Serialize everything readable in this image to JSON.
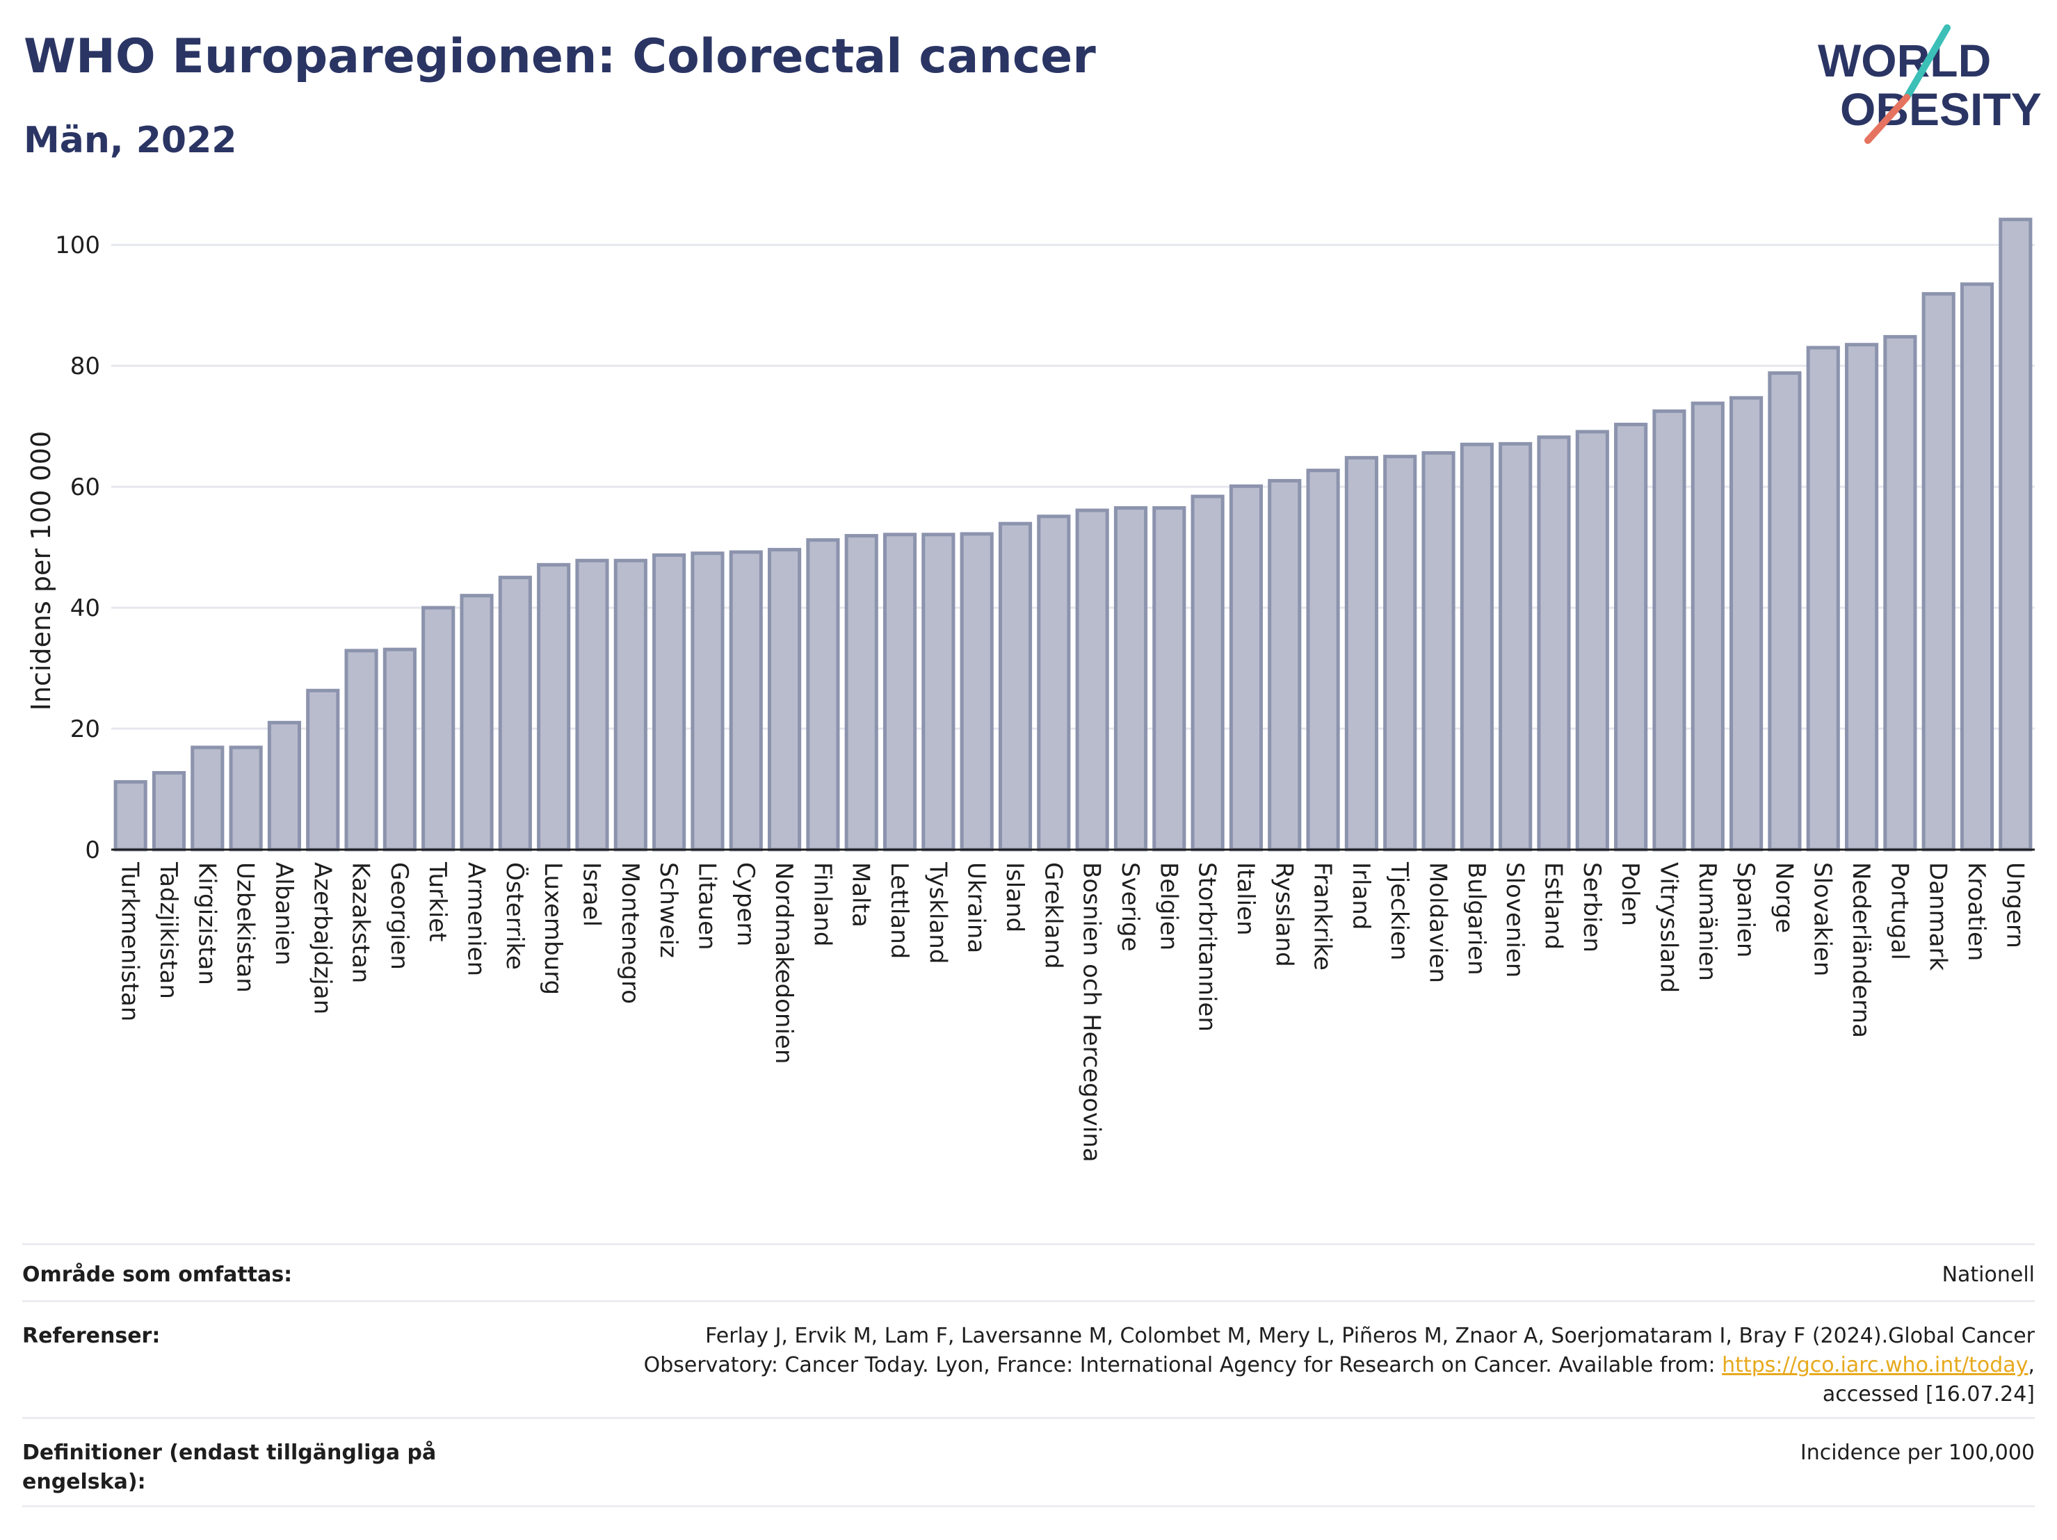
{
  "header": {
    "title": "WHO Europaregionen: Colorectal cancer",
    "subtitle": "Män, 2022"
  },
  "logo": {
    "line1": "WORLD",
    "line2": "OBESITY"
  },
  "chart_data": {
    "type": "bar",
    "title": "WHO Europaregionen: Colorectal cancer",
    "subtitle": "Män, 2022",
    "ylabel": "Incidens per 100 000",
    "xlabel": "",
    "ylim": [
      0,
      106
    ],
    "yticks": [
      0,
      20,
      40,
      60,
      80,
      100
    ],
    "grid": true,
    "bar_color": "#b8bccd",
    "bar_edge_color": "#8c93ad",
    "categories": [
      "Turkmenistan",
      "Tadzjikistan",
      "Kirgizistan",
      "Uzbekistan",
      "Albanien",
      "Azerbajdzjan",
      "Kazakstan",
      "Georgien",
      "Turkiet",
      "Armenien",
      "Österrike",
      "Luxemburg",
      "Israel",
      "Montenegro",
      "Schweiz",
      "Litauen",
      "Cypern",
      "Nordmakedonien",
      "Finland",
      "Malta",
      "Lettland",
      "Tyskland",
      "Ukraina",
      "Island",
      "Grekland",
      "Bosnien och Hercegovina",
      "Sverige",
      "Belgien",
      "Storbritannien",
      "Italien",
      "Ryssland",
      "Frankrike",
      "Irland",
      "Tjeckien",
      "Moldavien",
      "Bulgarien",
      "Slovenien",
      "Estland",
      "Serbien",
      "Polen",
      "Vitryssland",
      "Rumänien",
      "Spanien",
      "Norge",
      "Slovakien",
      "Nederländerna",
      "Portugal",
      "Danmark",
      "Kroatien",
      "Ungern"
    ],
    "values": [
      11.2,
      12.7,
      16.9,
      16.9,
      21.0,
      26.3,
      32.9,
      33.1,
      40.0,
      42.0,
      45.0,
      47.1,
      47.8,
      47.8,
      48.7,
      49.0,
      49.2,
      49.6,
      51.2,
      51.9,
      52.1,
      52.1,
      52.2,
      53.9,
      55.1,
      56.1,
      56.5,
      56.5,
      58.4,
      60.1,
      61.0,
      62.7,
      64.8,
      65.0,
      65.6,
      67.0,
      67.1,
      68.2,
      69.1,
      70.3,
      72.5,
      73.8,
      74.7,
      78.8,
      83.0,
      83.5,
      84.8,
      91.9,
      93.5,
      104.2
    ]
  },
  "info": {
    "coverage_label": "Område som omfattas:",
    "coverage_value": "Nationell",
    "references_label": "Referenser:",
    "references_text_1": "Ferlay J, Ervik M, Lam F, Laversanne M, Colombet M, Mery L, Piñeros M, Znaor A, Soerjomataram I, Bray F (2024).Global Cancer",
    "references_text_2": "Observatory: Cancer Today. Lyon, France: International Agency for Research on Cancer. Available from: ",
    "references_link": "https://gco.iarc.who.int/today",
    "references_text_3": ",",
    "references_text_4": "accessed [16.07.24]",
    "definitions_label": "Definitioner (endast tillgängliga på engelska):",
    "definitions_value": "Incidence per 100,000"
  }
}
